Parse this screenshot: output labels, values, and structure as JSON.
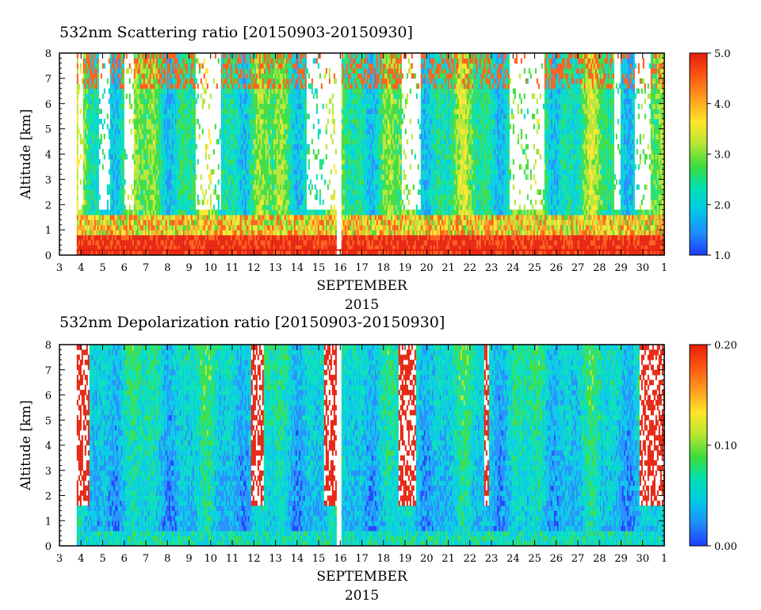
{
  "chart_data": [
    {
      "type": "heatmap",
      "title": "532nm Scattering ratio [20150903-20150930]",
      "ylabel": "Altitude [km]",
      "xlabel": "SEPTEMBER",
      "xlabel2": "2015",
      "ylim": [
        0,
        8
      ],
      "yticks": [
        "0",
        "1",
        "2",
        "3",
        "4",
        "5",
        "6",
        "7",
        "8"
      ],
      "xlim": [
        3,
        31
      ],
      "xticks": [
        "3",
        "4",
        "5",
        "6",
        "7",
        "8",
        "9",
        "10",
        "11",
        "12",
        "13",
        "14",
        "15",
        "16",
        "17",
        "18",
        "19",
        "20",
        "21",
        "22",
        "23",
        "24",
        "25",
        "26",
        "27",
        "28",
        "29",
        "30",
        "1"
      ],
      "colorbar": {
        "min": 1.0,
        "max": 5.0,
        "labels": [
          "1.0",
          "2.0",
          "3.0",
          "4.0",
          "5.0"
        ]
      },
      "data_start_day": 3.8,
      "data_gaps": [
        [
          15.8,
          16.05
        ]
      ],
      "dominant_color": "green-cyan with red low cloud layer",
      "grid": false,
      "legend": "colorbar-right"
    },
    {
      "type": "heatmap",
      "title": "532nm Depolarization ratio [20150903-20150930]",
      "ylabel": "Altitude [km]",
      "xlabel": "SEPTEMBER",
      "xlabel2": "2015",
      "ylim": [
        0,
        8
      ],
      "yticks": [
        "0",
        "1",
        "2",
        "3",
        "4",
        "5",
        "6",
        "7",
        "8"
      ],
      "xlim": [
        3,
        31
      ],
      "xticks": [
        "3",
        "4",
        "5",
        "6",
        "7",
        "8",
        "9",
        "10",
        "11",
        "12",
        "13",
        "14",
        "15",
        "16",
        "17",
        "18",
        "19",
        "20",
        "21",
        "22",
        "23",
        "24",
        "25",
        "26",
        "27",
        "28",
        "29",
        "30",
        "1"
      ],
      "colorbar": {
        "min": 0.0,
        "max": 0.2,
        "labels": [
          "0.00",
          "0.10",
          "0.20"
        ]
      },
      "data_start_day": 3.8,
      "data_gaps": [
        [
          15.8,
          16.05
        ]
      ],
      "dominant_color": "blue-cyan with red cloud regions",
      "grid": false,
      "legend": "colorbar-right"
    }
  ],
  "colors": {
    "palette": [
      "#1e3cff",
      "#1e8cff",
      "#00c8e6",
      "#00e0b4",
      "#3cdc3c",
      "#b4e632",
      "#ffe628",
      "#ffa01e",
      "#ff5a14",
      "#e61e0a"
    ],
    "axis": "#000000",
    "background": "#ffffff"
  }
}
